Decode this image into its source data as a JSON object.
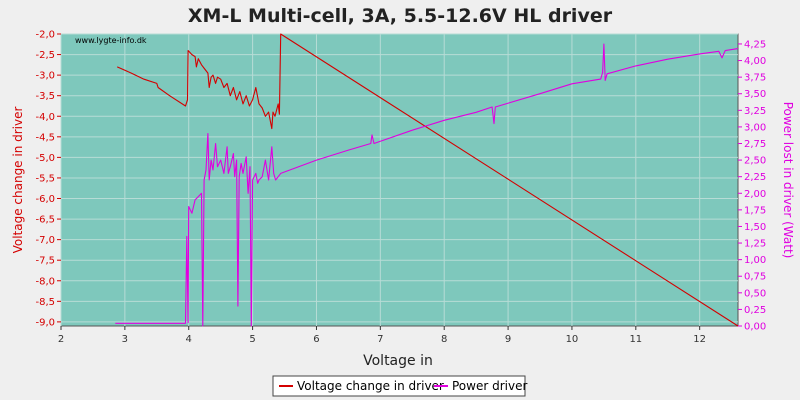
{
  "chart_data": {
    "type": "line",
    "title": "XM-L Multi-cell, 3A, 5.5-12.6V HL driver",
    "watermark": "www.lygte-info.dk",
    "xlabel": "Voltage in",
    "ylabel_left": "Voltage change in driver",
    "ylabel_right": "Power lost in driver (Watt)",
    "xlim": [
      2,
      12.6
    ],
    "ylim_left": [
      -9.1,
      -2.0
    ],
    "ylim_right": [
      0,
      4.4
    ],
    "x_ticks": [
      "2",
      "3",
      "4",
      "5",
      "6",
      "7",
      "8",
      "9",
      "10",
      "11",
      "12"
    ],
    "y_left_ticks": [
      "-2,0",
      "-2,5",
      "-3,0",
      "-3,5",
      "-4,0",
      "-4,5",
      "-5,0",
      "-5,5",
      "-6,0",
      "-6,5",
      "-7,0",
      "-7,5",
      "-8,0",
      "-8,5",
      "-9,0"
    ],
    "y_right_ticks": [
      "0,00",
      "0,25",
      "0,50",
      "0,75",
      "1,00",
      "1,25",
      "1,50",
      "1,75",
      "2,00",
      "2,25",
      "2,50",
      "2,75",
      "3,00",
      "3,25",
      "3,50",
      "3,75",
      "4,00",
      "4,25"
    ],
    "background_color": "#7ec8bc",
    "grid": true,
    "legend_position": "bottom-center",
    "series": [
      {
        "name": "Voltage change in driver",
        "axis": "left",
        "color": "#d40000",
        "points": [
          [
            2.88,
            -2.8
          ],
          [
            3.1,
            -2.95
          ],
          [
            3.3,
            -3.1
          ],
          [
            3.5,
            -3.2
          ],
          [
            3.52,
            -3.3
          ],
          [
            3.7,
            -3.5
          ],
          [
            3.95,
            -3.75
          ],
          [
            3.98,
            -3.6
          ],
          [
            3.99,
            -2.4
          ],
          [
            4.05,
            -2.5
          ],
          [
            4.1,
            -2.55
          ],
          [
            4.12,
            -2.8
          ],
          [
            4.15,
            -2.6
          ],
          [
            4.2,
            -2.75
          ],
          [
            4.25,
            -2.85
          ],
          [
            4.3,
            -2.95
          ],
          [
            4.32,
            -3.3
          ],
          [
            4.35,
            -3.05
          ],
          [
            4.38,
            -3.0
          ],
          [
            4.42,
            -3.2
          ],
          [
            4.45,
            -3.05
          ],
          [
            4.5,
            -3.1
          ],
          [
            4.55,
            -3.3
          ],
          [
            4.6,
            -3.2
          ],
          [
            4.65,
            -3.5
          ],
          [
            4.7,
            -3.3
          ],
          [
            4.75,
            -3.6
          ],
          [
            4.8,
            -3.4
          ],
          [
            4.85,
            -3.7
          ],
          [
            4.9,
            -3.5
          ],
          [
            4.95,
            -3.75
          ],
          [
            5.0,
            -3.6
          ],
          [
            5.05,
            -3.3
          ],
          [
            5.1,
            -3.7
          ],
          [
            5.15,
            -3.8
          ],
          [
            5.2,
            -4.0
          ],
          [
            5.25,
            -3.9
          ],
          [
            5.3,
            -4.3
          ],
          [
            5.32,
            -3.9
          ],
          [
            5.35,
            -4.0
          ],
          [
            5.4,
            -3.7
          ],
          [
            5.42,
            -3.95
          ],
          [
            5.44,
            -2.0
          ],
          [
            12.6,
            -9.1
          ]
        ]
      },
      {
        "name": "Power driver",
        "axis": "right",
        "color": "#e000e0",
        "points": [
          [
            2.85,
            0.04
          ],
          [
            3.95,
            0.04
          ],
          [
            3.97,
            1.35
          ],
          [
            3.99,
            0.05
          ],
          [
            4.0,
            1.8
          ],
          [
            4.05,
            1.7
          ],
          [
            4.1,
            1.9
          ],
          [
            4.15,
            1.95
          ],
          [
            4.2,
            2.0
          ],
          [
            4.22,
            0.0
          ],
          [
            4.24,
            2.2
          ],
          [
            4.27,
            2.35
          ],
          [
            4.3,
            2.9
          ],
          [
            4.32,
            2.2
          ],
          [
            4.35,
            2.5
          ],
          [
            4.38,
            2.35
          ],
          [
            4.42,
            2.75
          ],
          [
            4.45,
            2.4
          ],
          [
            4.5,
            2.5
          ],
          [
            4.55,
            2.3
          ],
          [
            4.6,
            2.7
          ],
          [
            4.62,
            2.3
          ],
          [
            4.65,
            2.4
          ],
          [
            4.7,
            2.6
          ],
          [
            4.72,
            2.25
          ],
          [
            4.75,
            2.5
          ],
          [
            4.77,
            0.3
          ],
          [
            4.79,
            2.25
          ],
          [
            4.82,
            2.45
          ],
          [
            4.85,
            2.3
          ],
          [
            4.9,
            2.55
          ],
          [
            4.93,
            2.0
          ],
          [
            4.96,
            2.4
          ],
          [
            4.98,
            0.0
          ],
          [
            5.0,
            2.2
          ],
          [
            5.05,
            2.3
          ],
          [
            5.08,
            2.15
          ],
          [
            5.1,
            2.2
          ],
          [
            5.15,
            2.25
          ],
          [
            5.2,
            2.5
          ],
          [
            5.25,
            2.2
          ],
          [
            5.3,
            2.7
          ],
          [
            5.33,
            2.3
          ],
          [
            5.36,
            2.2
          ],
          [
            5.4,
            2.25
          ],
          [
            5.44,
            2.3
          ],
          [
            6.0,
            2.5
          ],
          [
            6.5,
            2.65
          ],
          [
            6.85,
            2.75
          ],
          [
            6.87,
            2.88
          ],
          [
            6.9,
            2.75
          ],
          [
            7.5,
            2.95
          ],
          [
            8.0,
            3.1
          ],
          [
            8.5,
            3.22
          ],
          [
            8.75,
            3.3
          ],
          [
            8.78,
            3.05
          ],
          [
            8.8,
            3.3
          ],
          [
            9.5,
            3.5
          ],
          [
            10.0,
            3.65
          ],
          [
            10.45,
            3.72
          ],
          [
            10.48,
            3.82
          ],
          [
            10.5,
            4.25
          ],
          [
            10.52,
            3.7
          ],
          [
            10.55,
            3.8
          ],
          [
            11.0,
            3.92
          ],
          [
            11.5,
            4.02
          ],
          [
            12.0,
            4.1
          ],
          [
            12.3,
            4.14
          ],
          [
            12.35,
            4.04
          ],
          [
            12.4,
            4.15
          ],
          [
            12.6,
            4.18
          ]
        ]
      }
    ]
  }
}
